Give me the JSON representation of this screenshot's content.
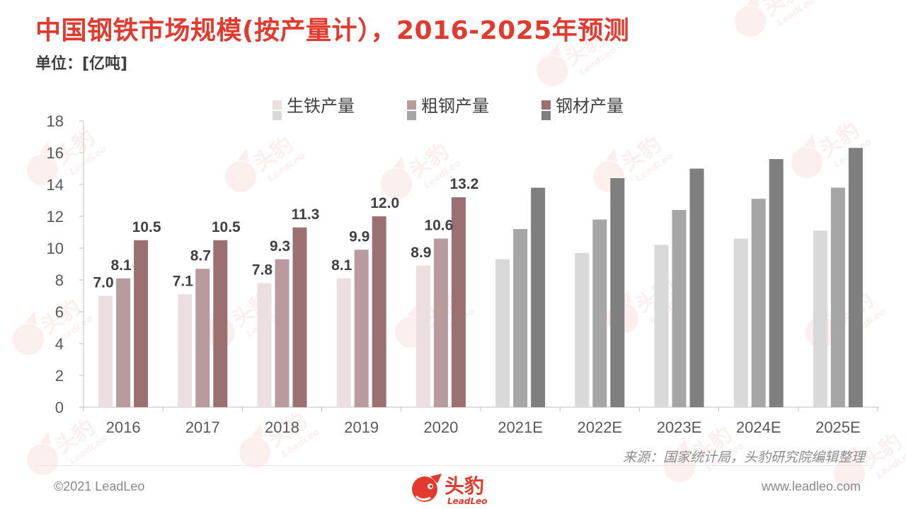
{
  "title": "中国钢铁市场规模(按产量计），2016-2025年预测",
  "unit": "单位：[亿吨]",
  "source": "来源：国家统计局，头豹研究院编辑整理",
  "copyright": "©2021 LeadLeo",
  "website": "www.leadleo.com",
  "logo": {
    "cn": "头豹",
    "en": "LeadLeo"
  },
  "watermark": {
    "cn": "头豹",
    "en": "LeadLeo"
  },
  "colors": {
    "title": "#e23a2f",
    "historical": [
      "#ecdfe0",
      "#b89b9d",
      "#9c7070"
    ],
    "forecast": [
      "#d9d9d9",
      "#a6a6a6",
      "#7f7f7f"
    ]
  },
  "chart_data": {
    "type": "bar",
    "categories": [
      "2016",
      "2017",
      "2018",
      "2019",
      "2020",
      "2021E",
      "2022E",
      "2023E",
      "2024E",
      "2025E"
    ],
    "series": [
      {
        "name": "生铁产量",
        "values": [
          7.0,
          7.1,
          7.8,
          8.1,
          8.9,
          9.3,
          9.7,
          10.2,
          10.6,
          11.1
        ]
      },
      {
        "name": "粗钢产量",
        "values": [
          8.1,
          8.7,
          9.3,
          9.9,
          10.6,
          11.2,
          11.8,
          12.4,
          13.1,
          13.8
        ]
      },
      {
        "name": "钢材产量",
        "values": [
          10.5,
          10.5,
          11.3,
          12.0,
          13.2,
          13.8,
          14.4,
          15.0,
          15.6,
          16.3
        ]
      }
    ],
    "data_labels": [
      [
        "7.0",
        "7.1",
        "7.8",
        "8.1",
        "8.9"
      ],
      [
        "8.1",
        "8.7",
        "9.3",
        "9.9",
        "10.6"
      ],
      [
        "10.5",
        "10.5",
        "11.3",
        "12.0",
        "13.2"
      ]
    ],
    "yticks": [
      "0",
      "2",
      "4",
      "6",
      "8",
      "10",
      "12",
      "14",
      "16",
      "18"
    ],
    "ylim": [
      0,
      18
    ],
    "grid": false,
    "legend_position": "top-center"
  }
}
